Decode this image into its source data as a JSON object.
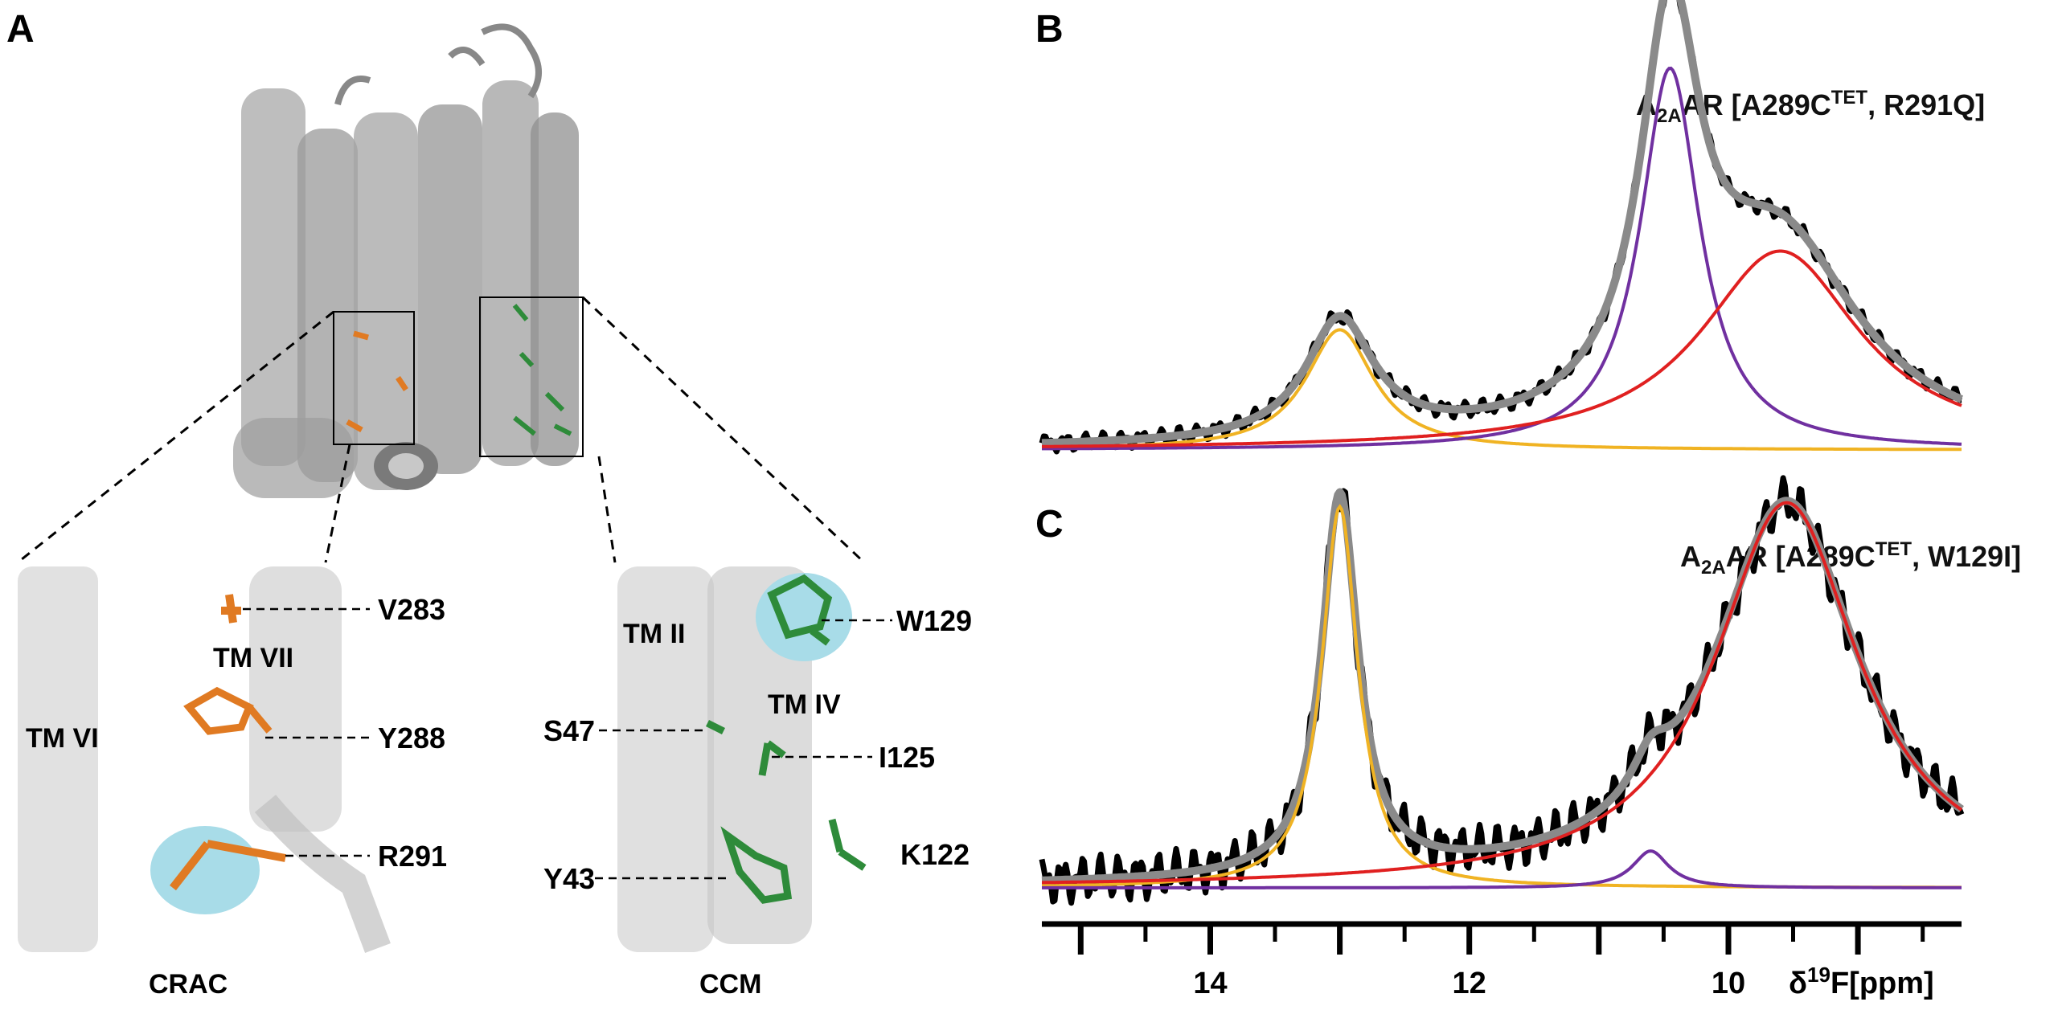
{
  "panels": {
    "a": {
      "letter": "A",
      "crac": {
        "name": "CRAC",
        "helices": [
          "TM VI",
          "TM VII"
        ],
        "residues": [
          "V283",
          "Y288",
          "R291"
        ]
      },
      "ccm": {
        "name": "CCM",
        "helices": [
          "TM II",
          "TM IV"
        ],
        "residues": [
          "W129",
          "S47",
          "I125",
          "Y43",
          "K122"
        ]
      }
    },
    "b": {
      "letter": "B",
      "sample_base": "A",
      "sample_sub": "2A",
      "sample_mid": "AR [A289C",
      "sample_sup": "TET",
      "sample_end": ", R291Q]"
    },
    "c": {
      "letter": "C",
      "sample_base": "A",
      "sample_sub": "2A",
      "sample_mid": "AR [A289C",
      "sample_sup": "TET",
      "sample_end": ", W129I]"
    }
  },
  "axis": {
    "label_delta": "δ",
    "label_sup": "19",
    "label_rest": "F[ppm]",
    "ticks": [
      14,
      12,
      10
    ]
  },
  "colors": {
    "experimental": "#000000",
    "sum_fit": "#8a8a8a",
    "component_1": "#f0b323",
    "component_2": "#7030a0",
    "component_3": "#e02020",
    "orange_residues": "#e07a22",
    "green_residues": "#2e8b3a",
    "highlight": "#a8dce8",
    "helix": "#b8b8b8"
  },
  "chart_data": [
    {
      "type": "line",
      "panel": "B",
      "xlabel": "δ19F[ppm]",
      "xlim": [
        15.3,
        8.2
      ],
      "x_reversed": true,
      "ylim": [
        0,
        1.0
      ],
      "peaks": [
        {
          "color": "component_1",
          "center": 13.0,
          "width": 0.32,
          "height": 0.272
        },
        {
          "color": "component_2",
          "center": 10.45,
          "width": 0.28,
          "height": 0.864
        },
        {
          "color": "component_3",
          "center": 9.6,
          "width": 0.75,
          "height": 0.45
        }
      ]
    },
    {
      "type": "line",
      "panel": "C",
      "xlabel": "δ19F[ppm]",
      "xlim": [
        15.3,
        8.2
      ],
      "x_reversed": true,
      "ylim": [
        0,
        1.0
      ],
      "peaks": [
        {
          "color": "component_1",
          "center": 13.0,
          "width": 0.17,
          "height": 0.93
        },
        {
          "color": "component_2",
          "center": 10.6,
          "width": 0.17,
          "height": 0.09
        },
        {
          "color": "component_3",
          "center": 9.55,
          "width": 0.68,
          "height": 0.94
        }
      ]
    }
  ]
}
